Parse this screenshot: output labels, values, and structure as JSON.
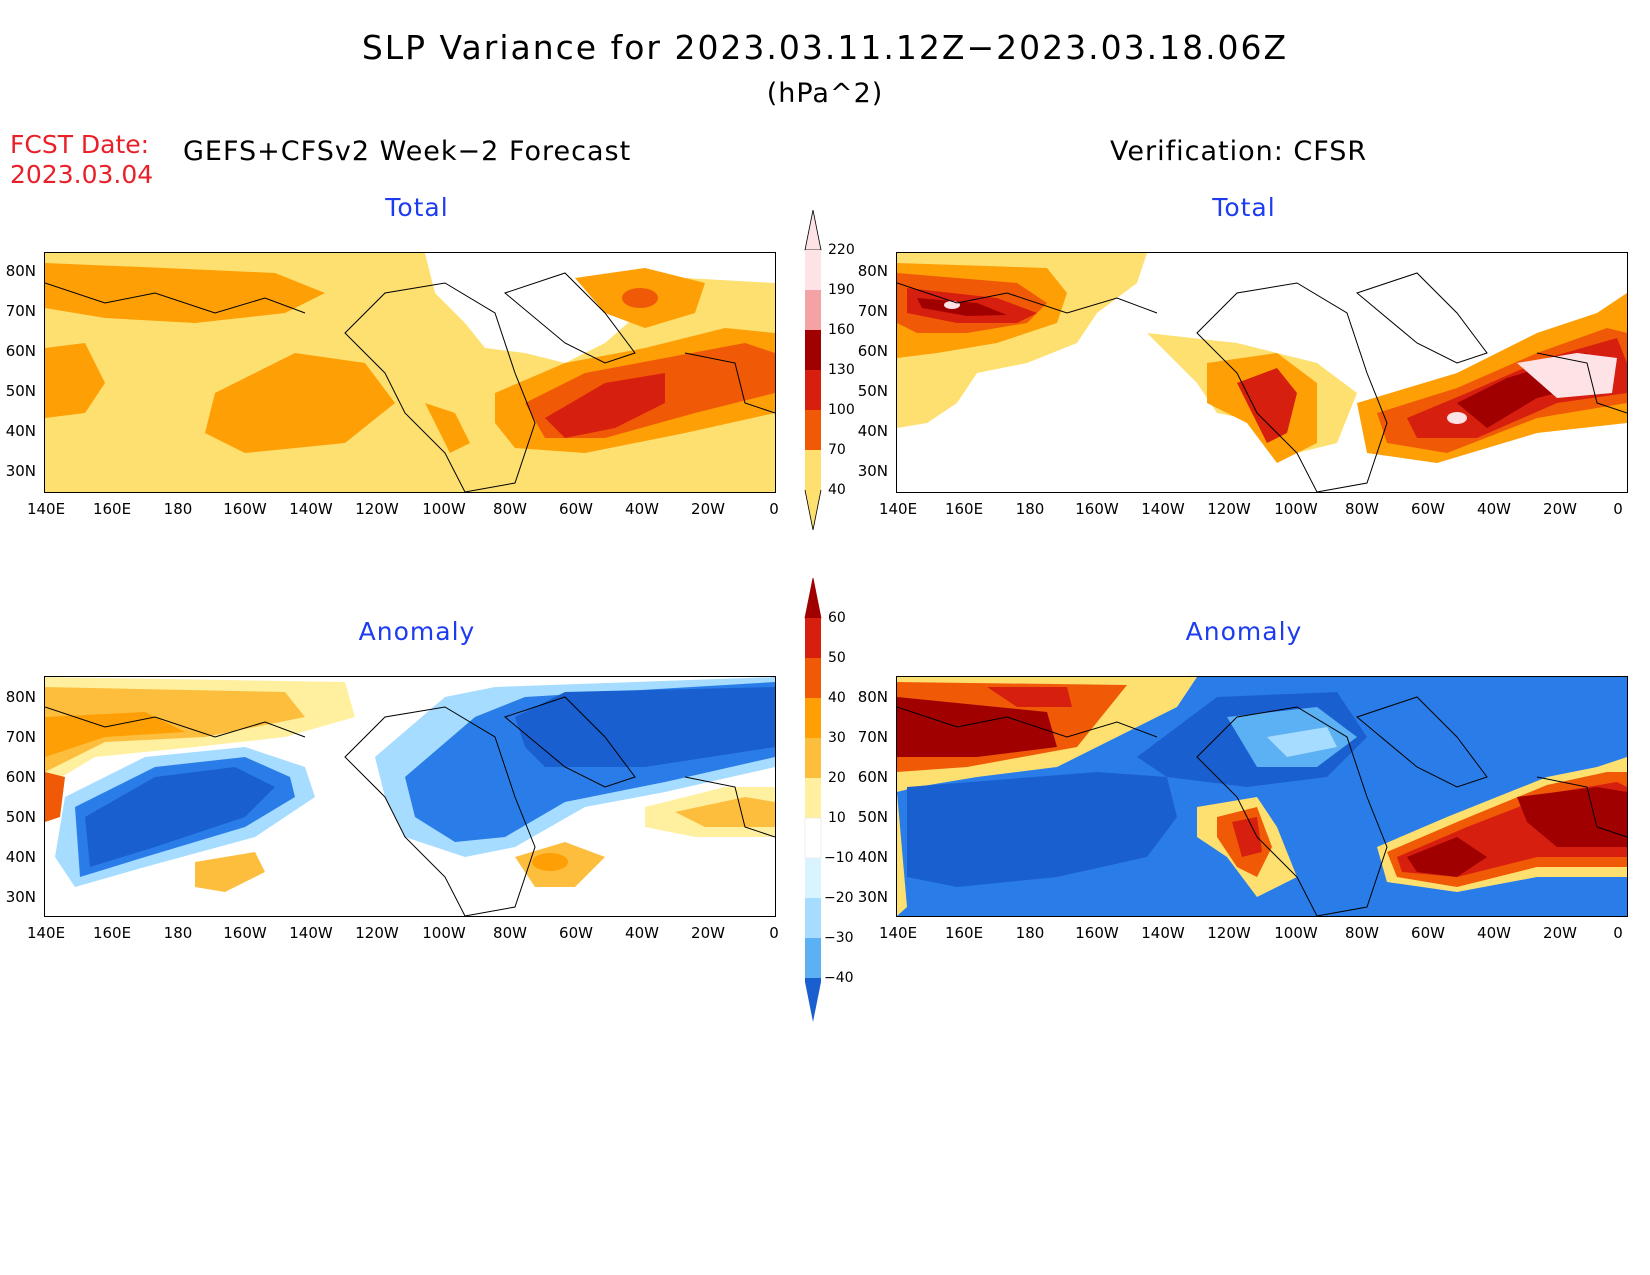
{
  "title": "SLP Variance for 2023.03.11.12Z−2023.03.18.06Z",
  "units": "(hPa^2)",
  "fcst_label": "FCST Date:",
  "fcst_date": "2023.03.04",
  "left_header": "GEFS+CFSv2 Week−2 Forecast",
  "right_header": "Verification: CFSR",
  "panels": {
    "top_left_title": "Total",
    "top_right_title": "Total",
    "bottom_left_title": "Anomaly",
    "bottom_right_title": "Anomaly"
  },
  "lat_labels": [
    "80N",
    "70N",
    "60N",
    "50N",
    "40N",
    "30N"
  ],
  "lon_labels": [
    "140E",
    "160E",
    "180",
    "160W",
    "140W",
    "120W",
    "100W",
    "80W",
    "60W",
    "40W",
    "20W",
    "0"
  ],
  "total_colorbar": {
    "labels": [
      "220",
      "190",
      "160",
      "130",
      "100",
      "70",
      "40"
    ],
    "colors": [
      "#fde3e6",
      "#f4a2a4",
      "#a00000",
      "#d71f0f",
      "#f05a06",
      "#fd9f05",
      "#fde070"
    ]
  },
  "anomaly_colorbar": {
    "labels": [
      "60",
      "50",
      "40",
      "30",
      "20",
      "10",
      "−10",
      "−20",
      "−30",
      "−40"
    ],
    "warm_colors": [
      "#a00000",
      "#d71f0f",
      "#f05a06",
      "#fd9f05",
      "#fdbe3e",
      "#fff0a0"
    ],
    "cool_colors": [
      "#d9f4ff",
      "#a5dcff",
      "#5cb0f4",
      "#2a7de8",
      "#1a5fd0"
    ]
  }
}
